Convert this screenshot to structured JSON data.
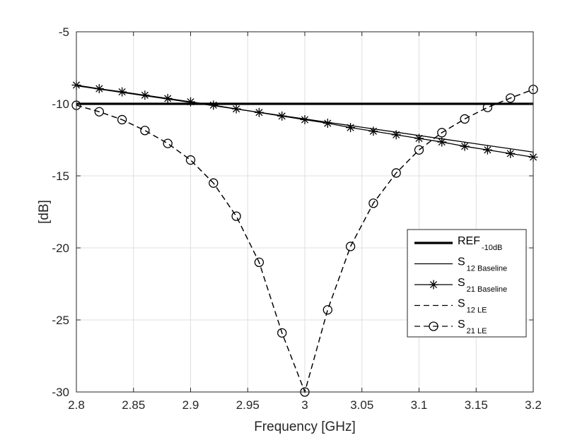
{
  "chart_data": {
    "type": "line",
    "title": "",
    "xlabel": "Frequency [GHz]",
    "ylabel": "[dB]",
    "xlim": [
      2.8,
      3.2
    ],
    "ylim": [
      -30,
      -5
    ],
    "grid": true,
    "legend_position": "bottom-right",
    "x_ticks": [
      2.8,
      2.85,
      2.9,
      2.95,
      3.0,
      3.05,
      3.1,
      3.15,
      3.2
    ],
    "x_tick_labels": [
      "2.8",
      "2.85",
      "2.9",
      "2.95",
      "3",
      "3.05",
      "3.1",
      "3.15",
      "3.2"
    ],
    "y_ticks": [
      -30,
      -25,
      -20,
      -15,
      -10,
      -5
    ],
    "y_tick_labels": [
      "-30",
      "-25",
      "-20",
      "-15",
      "-10",
      "-5"
    ],
    "x": [
      2.8,
      2.82,
      2.84,
      2.86,
      2.88,
      2.9,
      2.92,
      2.94,
      2.96,
      2.98,
      3.0,
      3.02,
      3.04,
      3.06,
      3.08,
      3.1,
      3.12,
      3.14,
      3.16,
      3.18,
      3.2
    ],
    "series": [
      {
        "name": "REF -10dB",
        "legend_main": "REF",
        "legend_sub": "-10dB",
        "style": "thick-solid",
        "marker": "none",
        "values": [
          -10,
          -10,
          -10,
          -10,
          -10,
          -10,
          -10,
          -10,
          -10,
          -10,
          -10,
          -10,
          -10,
          -10,
          -10,
          -10,
          -10,
          -10,
          -10,
          -10,
          -10
        ]
      },
      {
        "name": "S 12 Baseline",
        "legend_main": "S",
        "legend_sub": "12 Baseline",
        "style": "solid",
        "marker": "none",
        "values": [
          -8.75,
          -8.98,
          -9.21,
          -9.44,
          -9.67,
          -9.9,
          -10.13,
          -10.36,
          -10.59,
          -10.82,
          -11.05,
          -11.28,
          -11.51,
          -11.74,
          -11.97,
          -12.2,
          -12.43,
          -12.66,
          -12.89,
          -13.12,
          -13.35
        ]
      },
      {
        "name": "S 21 Baseline",
        "legend_main": "S",
        "legend_sub": "21 Baseline",
        "style": "solid",
        "marker": "asterisk",
        "values": [
          -8.7,
          -8.95,
          -9.17,
          -9.4,
          -9.63,
          -9.86,
          -10.09,
          -10.35,
          -10.6,
          -10.85,
          -11.1,
          -11.35,
          -11.65,
          -11.9,
          -12.15,
          -12.4,
          -12.65,
          -12.95,
          -13.2,
          -13.45,
          -13.7
        ]
      },
      {
        "name": "S 12 LE",
        "legend_main": "S",
        "legend_sub": "12 LE",
        "style": "dashed",
        "marker": "none",
        "values": [
          -10.1,
          -10.55,
          -11.1,
          -11.85,
          -12.75,
          -13.9,
          -15.5,
          -17.8,
          -21.0,
          -25.9,
          -30.0,
          -24.3,
          -19.9,
          -16.9,
          -14.8,
          -13.2,
          -12.0,
          -11.05,
          -10.25,
          -9.6,
          -9.0
        ]
      },
      {
        "name": "S 21 LE",
        "legend_main": "S",
        "legend_sub": "21 LE",
        "style": "dashed",
        "marker": "circle",
        "values": [
          -10.1,
          -10.55,
          -11.1,
          -11.85,
          -12.75,
          -13.9,
          -15.5,
          -17.8,
          -21.0,
          -25.9,
          -30.0,
          -24.3,
          -19.9,
          -16.9,
          -14.8,
          -13.2,
          -12.0,
          -11.05,
          -10.25,
          -9.6,
          -9.0
        ]
      }
    ]
  }
}
